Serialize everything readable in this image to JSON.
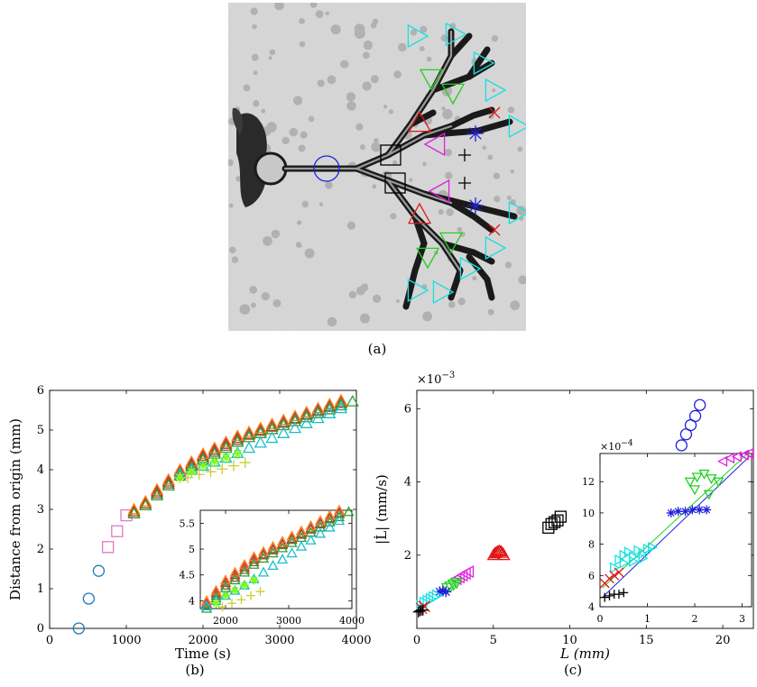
{
  "panel_a": {
    "caption": "(a)",
    "description_markers": [
      "circle",
      "square",
      "triangle-up",
      "triangle-left",
      "triangle-down",
      "triangle-right",
      "asterisk",
      "cross",
      "plus"
    ],
    "colors": {
      "blue": "#1f1fdc",
      "black": "#000000",
      "red": "#e01818",
      "magenta": "#e020e0",
      "green": "#20d020",
      "cyan": "#18e0e0"
    }
  },
  "chart_data": [
    {
      "id": "b",
      "type": "scatter",
      "caption": "(b)",
      "xlabel": "Time (s)",
      "ylabel": "Distance from origin (mm)",
      "xlim": [
        0,
        4000
      ],
      "ylim": [
        0,
        6
      ],
      "xticks": [
        "0",
        "1000",
        "2000",
        "3000",
        "4000"
      ],
      "yticks": [
        "0",
        "1",
        "2",
        "3",
        "4",
        "5",
        "6"
      ],
      "series": [
        {
          "marker": "circle",
          "color": "#1f77b4",
          "x": [
            380,
            510,
            640
          ],
          "y": [
            0.0,
            0.75,
            1.45
          ]
        },
        {
          "marker": "square",
          "color": "#e377c2",
          "x": [
            760,
            880,
            1000
          ],
          "y": [
            2.05,
            2.45,
            2.85
          ]
        },
        {
          "marker": "triangle",
          "color": "#d62728",
          "x": [
            1100,
            1250,
            1400,
            1550,
            1700,
            1850,
            2000,
            2150,
            2300,
            2450,
            2600,
            2750,
            2900,
            3050,
            3200,
            3350,
            3500,
            3650,
            3800
          ],
          "y": [
            2.95,
            3.15,
            3.45,
            3.7,
            3.95,
            4.15,
            4.35,
            4.5,
            4.65,
            4.8,
            4.9,
            5.0,
            5.1,
            5.2,
            5.3,
            5.4,
            5.5,
            5.6,
            5.7
          ]
        },
        {
          "marker": "triangle",
          "color": "#8c564b",
          "x": [
            1100,
            1250,
            1400,
            1550,
            1700,
            1850,
            2000,
            2150,
            2300,
            2450,
            2600,
            2750,
            2900,
            3050,
            3200,
            3350,
            3500,
            3650,
            3800
          ],
          "y": [
            2.9,
            3.1,
            3.4,
            3.65,
            3.9,
            4.1,
            4.3,
            4.45,
            4.6,
            4.75,
            4.88,
            4.98,
            5.08,
            5.18,
            5.28,
            5.38,
            5.48,
            5.58,
            5.68
          ]
        },
        {
          "marker": "triangle",
          "color": "#ff7f0e",
          "x": [
            1100,
            1250,
            1400,
            1550,
            1700,
            1850,
            2000,
            2150,
            2300,
            2450,
            2600,
            2750,
            2900,
            3050,
            3200,
            3350,
            3500,
            3650,
            3800
          ],
          "y": [
            3.0,
            3.2,
            3.5,
            3.75,
            4.0,
            4.2,
            4.4,
            4.55,
            4.7,
            4.85,
            4.95,
            5.05,
            5.15,
            5.25,
            5.35,
            5.45,
            5.55,
            5.65,
            5.75
          ]
        },
        {
          "marker": "triangle",
          "color": "#2ca02c",
          "x": [
            1100,
            1250,
            1400,
            1550,
            1700,
            1850,
            2000,
            2150,
            2300,
            2450,
            2600,
            2750,
            2900,
            3050,
            3200,
            3350,
            3500,
            3650,
            3800,
            3950
          ],
          "y": [
            2.9,
            3.1,
            3.35,
            3.6,
            3.85,
            4.05,
            4.25,
            4.4,
            4.55,
            4.7,
            4.82,
            4.92,
            5.02,
            5.12,
            5.22,
            5.32,
            5.42,
            5.52,
            5.62,
            5.72
          ]
        },
        {
          "marker": "triangle",
          "color": "#17becf",
          "x": [
            1700,
            1850,
            2000,
            2150,
            2300,
            2450,
            2600,
            2750,
            2900,
            3050,
            3200,
            3350,
            3500,
            3650,
            3800
          ],
          "y": [
            3.9,
            4.0,
            4.1,
            4.2,
            4.3,
            4.42,
            4.55,
            4.68,
            4.8,
            4.92,
            5.05,
            5.17,
            5.3,
            5.42,
            5.55
          ]
        },
        {
          "marker": "asterisk",
          "color": "#7fff00",
          "x": [
            1700,
            1850,
            2000,
            2150,
            2300,
            2450
          ],
          "y": [
            3.8,
            3.95,
            4.1,
            4.2,
            4.3,
            4.4
          ]
        },
        {
          "marker": "plus",
          "color": "#cccc33",
          "x": [
            1800,
            1950,
            2100,
            2250,
            2400,
            2550
          ],
          "y": [
            3.8,
            3.88,
            3.95,
            4.02,
            4.1,
            4.18
          ]
        }
      ],
      "inset": {
        "xlim": [
          1600,
          4000
        ],
        "ylim": [
          3.85,
          5.75
        ],
        "xticks": [
          "2000",
          "3000",
          "4000"
        ],
        "yticks": [
          "4",
          "4.5",
          "5",
          "5.5"
        ]
      }
    },
    {
      "id": "c",
      "type": "scatter",
      "caption": "(c)",
      "xlabel": "L (mm)",
      "ylabel": "|L̇| (mm/s)",
      "yexp": "×10",
      "yexp_power": "−3",
      "xlim": [
        0,
        22
      ],
      "ylim": [
        0,
        6.5
      ],
      "xticks": [
        "0",
        "5",
        "10",
        "15",
        "20"
      ],
      "yticks": [
        "2",
        "4",
        "6"
      ],
      "series": [
        {
          "marker": "circle",
          "color": "#1f1fdc",
          "x": [
            17.3,
            17.6,
            17.9,
            18.2,
            18.5
          ],
          "y": [
            5.0,
            5.3,
            5.55,
            5.8,
            6.1
          ]
        },
        {
          "marker": "square",
          "color": "#000000",
          "x": [
            8.6,
            8.8,
            9.0,
            9.2,
            9.4
          ],
          "y": [
            2.75,
            2.85,
            2.9,
            2.95,
            3.05
          ]
        },
        {
          "marker": "triangle-up",
          "color": "#e01818",
          "x": [
            5.0,
            5.1,
            5.2,
            5.3,
            5.4,
            5.5,
            5.6,
            5.7
          ],
          "y": [
            2.0,
            2.05,
            2.08,
            2.1,
            2.12,
            2.1,
            2.06,
            2.0
          ]
        },
        {
          "marker": "triangle-left",
          "color": "#e020e0",
          "x": [
            2.6,
            2.8,
            3.0,
            3.2,
            3.4
          ],
          "y": [
            1.35,
            1.4,
            1.45,
            1.5,
            1.55
          ]
        },
        {
          "marker": "triangle-down",
          "color": "#20d020",
          "x": [
            2.0,
            2.2,
            2.4,
            2.6
          ],
          "y": [
            1.1,
            1.15,
            1.2,
            1.25
          ]
        },
        {
          "marker": "asterisk",
          "color": "#1f1fdc",
          "x": [
            1.5,
            1.7,
            1.9
          ],
          "y": [
            1.0,
            1.02,
            1.0
          ]
        },
        {
          "marker": "triangle-right",
          "color": "#18e0e0",
          "x": [
            0.3,
            0.5,
            0.7,
            0.9,
            1.1,
            1.3
          ],
          "y": [
            0.6,
            0.7,
            0.75,
            0.8,
            0.85,
            0.9
          ]
        },
        {
          "marker": "cross",
          "color": "#e01818",
          "x": [
            0.3,
            0.5
          ],
          "y": [
            0.55,
            0.6
          ]
        },
        {
          "marker": "plus",
          "color": "#000000",
          "x": [
            0.1,
            0.2,
            0.3,
            0.4
          ],
          "y": [
            0.45,
            0.48,
            0.5,
            0.5
          ]
        }
      ],
      "inset": {
        "yexp": "×10",
        "yexp_power": "−4",
        "xlim": [
          0,
          3.2
        ],
        "ylim": [
          4,
          13.8
        ],
        "xticks": [
          "0",
          "1",
          "2",
          "3"
        ],
        "yticks": [
          "4",
          "6",
          "8",
          "10",
          "12"
        ],
        "series": [
          {
            "marker": "triangle-left",
            "color": "#e020e0",
            "x": [
              2.6,
              2.75,
              2.9,
              3.05,
              3.15
            ],
            "y": [
              13.3,
              13.5,
              13.6,
              13.7,
              13.8
            ]
          },
          {
            "marker": "triangle-down",
            "color": "#20d020",
            "x": [
              1.9,
              2.05,
              2.2,
              2.35,
              2.5,
              2.0,
              2.3
            ],
            "y": [
              12.0,
              12.3,
              12.5,
              12.2,
              12.0,
              11.5,
              11.2
            ]
          },
          {
            "marker": "asterisk",
            "color": "#1f1fdc",
            "x": [
              1.5,
              1.65,
              1.8,
              1.95,
              2.1,
              2.25
            ],
            "y": [
              10.0,
              10.1,
              10.1,
              10.2,
              10.2,
              10.2
            ]
          },
          {
            "marker": "triangle-right",
            "color": "#18e0e0",
            "x": [
              0.3,
              0.4,
              0.5,
              0.6,
              0.7,
              0.8,
              0.9,
              1.0,
              1.1,
              0.5,
              0.7,
              0.9
            ],
            "y": [
              6.5,
              7.0,
              7.3,
              7.5,
              7.2,
              7.6,
              7.4,
              7.7,
              7.8,
              6.8,
              6.9,
              7.1
            ]
          },
          {
            "marker": "cross",
            "color": "#e01818",
            "x": [
              0.1,
              0.2,
              0.3,
              0.4
            ],
            "y": [
              5.5,
              5.8,
              6.0,
              6.2
            ]
          },
          {
            "marker": "plus",
            "color": "#000000",
            "x": [
              0.1,
              0.2,
              0.3,
              0.4,
              0.5
            ],
            "y": [
              4.6,
              4.7,
              4.8,
              4.8,
              4.9
            ]
          }
        ]
      }
    }
  ]
}
